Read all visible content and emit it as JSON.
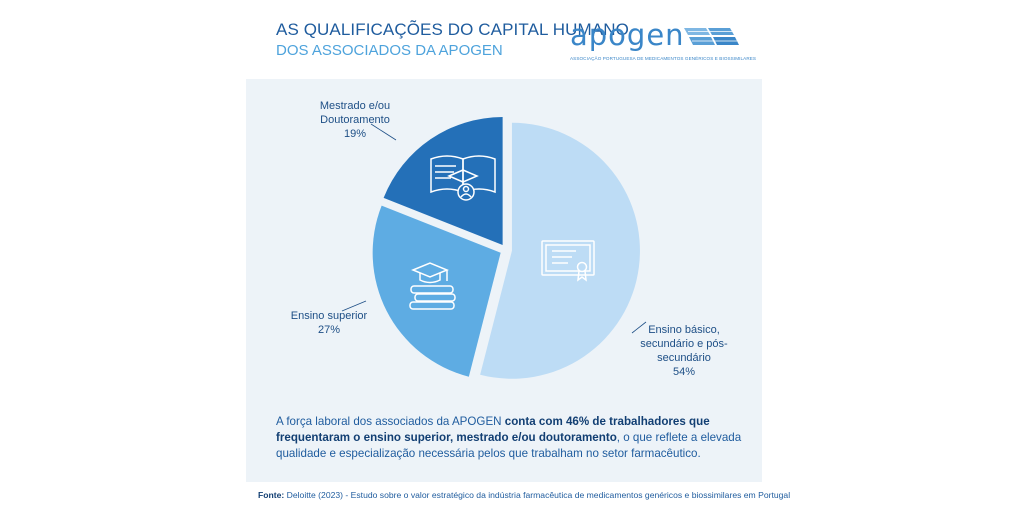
{
  "header": {
    "title_line1": "AS QUALIFICAÇÕES DO CAPITAL HUMANO",
    "title_line2": "DOS ASSOCIADOS DA APOGEN"
  },
  "logo": {
    "wordmark": "apogen",
    "tagline": "ASSOCIAÇÃO PORTUGUESA DE MEDICAMENTOS GENÉRICOS E BIOSSIMILARES",
    "icon": "solar-panel-logo-icon",
    "color": "#3a86c8"
  },
  "chart_data": {
    "type": "pie",
    "slices": [
      {
        "label_lines": [
          "Ensino básico,",
          "secundário e pós-",
          "secundário"
        ],
        "value_label": "54%",
        "value": 54,
        "color": "#bddcf5",
        "icon": "certificate-icon"
      },
      {
        "label_lines": [
          "Ensino superior"
        ],
        "value_label": "27%",
        "value": 27,
        "color": "#5eace3",
        "icon": "books-graduation-cap-icon"
      },
      {
        "label_lines": [
          "Mestrado e/ou",
          "Doutoramento"
        ],
        "value_label": "19%",
        "value": 19,
        "color": "#2470b8",
        "icon": "open-book-graduate-icon"
      }
    ]
  },
  "description": {
    "part1": "A força laboral dos associados da APOGEN ",
    "bold1": "conta com 46% de trabalhadores que frequentaram o ensino superior, mestrado e/ou doutoramento",
    "part2": ", o que reflete a elevada qualidade e especialização necessária pelos que trabalham no setor farmacêutico."
  },
  "source": {
    "label": "Fonte:",
    "text": " Deloitte (2023) - Estudo sobre o valor estratégico da indústria farmacêutica de medicamentos genéricos e biossimilares em Portugal"
  }
}
